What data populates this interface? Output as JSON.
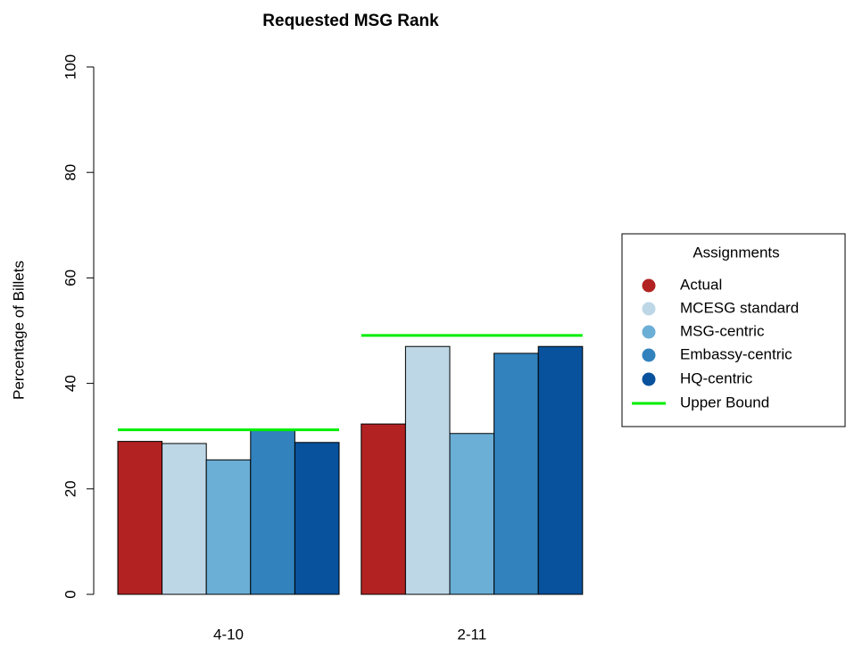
{
  "chart_data": {
    "type": "bar",
    "title": "Requested MSG Rank",
    "y_label": "Percentage of Billets",
    "categories": [
      "4-10",
      "2-11"
    ],
    "series": [
      {
        "name": "Actual",
        "color": "#b22222",
        "values": [
          29,
          32.3
        ]
      },
      {
        "name": "MCESG standard",
        "color": "#bdd7e7",
        "values": [
          28.6,
          47
        ]
      },
      {
        "name": "MSG-centric",
        "color": "#6baed6",
        "values": [
          25.5,
          30.5
        ]
      },
      {
        "name": "Embassy-centric",
        "color": "#3182bd",
        "values": [
          31.1,
          45.7
        ]
      },
      {
        "name": "HQ-centric",
        "color": "#08519c",
        "values": [
          28.8,
          47
        ]
      }
    ],
    "upper_bound": {
      "name": "Upper Bound",
      "color": "#00ee00",
      "values": [
        31.2,
        49.1
      ]
    },
    "legend_title": "Assignments",
    "ylim": [
      0,
      100
    ],
    "yticks": [
      0,
      20,
      40,
      60,
      80,
      100
    ],
    "grid": false
  }
}
